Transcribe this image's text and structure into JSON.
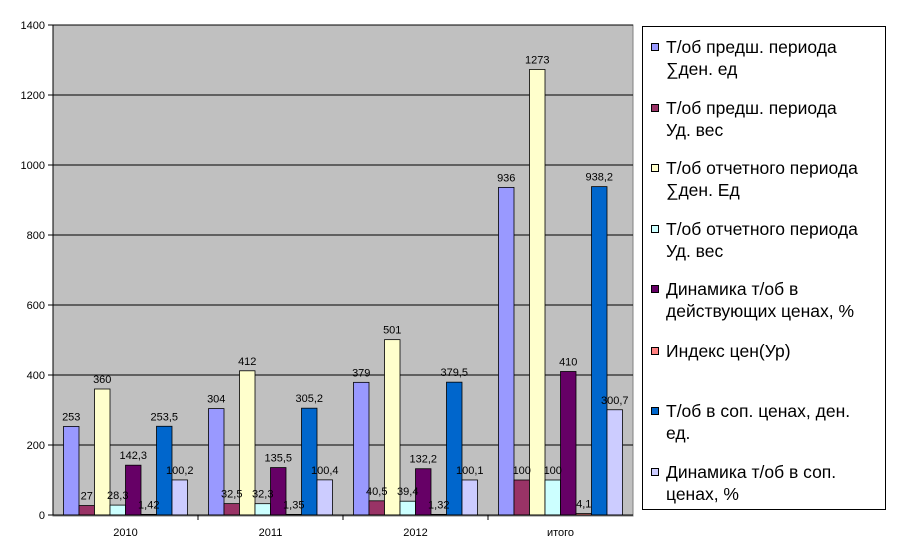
{
  "chart_data": {
    "type": "bar",
    "categories": [
      "2010",
      "2011",
      "2012",
      "итого"
    ],
    "ylim": [
      0,
      1400
    ],
    "yticks": [
      0,
      200,
      400,
      600,
      800,
      1000,
      1200,
      1400
    ],
    "grid": true,
    "legend_position": "right",
    "series": [
      {
        "name": "Т/об предш. периода ∑ден. ед",
        "color": "#9999ff",
        "values": [
          253,
          304,
          379,
          936
        ],
        "labels": [
          "253",
          "304",
          "379",
          "936"
        ]
      },
      {
        "name": "Т/об предш. периода Уд. вес",
        "color": "#993366",
        "values": [
          27,
          32.5,
          40.5,
          100
        ],
        "labels": [
          "27",
          "32,5",
          "40,5",
          "100"
        ]
      },
      {
        "name": "Т/об отчетного периода ∑ден. Ед",
        "color": "#ffffcc",
        "values": [
          360,
          412,
          501,
          1273
        ],
        "labels": [
          "360",
          "412",
          "501",
          "1273"
        ]
      },
      {
        "name": "Т/об отчетного периода Уд. вес",
        "color": "#ccffff",
        "values": [
          28.3,
          32.3,
          39.4,
          100
        ],
        "labels": [
          "28,3",
          "32,3",
          "39,4",
          "100"
        ]
      },
      {
        "name": "Динамика т/об в действующих ценах, %",
        "color": "#660066",
        "values": [
          142.3,
          135.5,
          132.2,
          410
        ],
        "labels": [
          "142,3",
          "135,5",
          "132,2",
          "410"
        ]
      },
      {
        "name": "Индекс цен(Ур)",
        "color": "#ff8080",
        "values": [
          1.42,
          1.35,
          1.32,
          4.1
        ],
        "labels": [
          "1,42",
          "1,35",
          "1,32",
          "4,1"
        ]
      },
      {
        "name": "Т/об в соп. ценах, ден. ед.",
        "color": "#0066cc",
        "values": [
          253.5,
          305.2,
          379.5,
          938.2
        ],
        "labels": [
          "253,5",
          "305,2",
          "379,5",
          "938,2"
        ]
      },
      {
        "name": "Динамика т/об в соп. ценах, %",
        "color": "#ccccff",
        "values": [
          100.2,
          100.4,
          100.1,
          300.7
        ],
        "labels": [
          "100,2",
          "100,4",
          "100,1",
          "300,7"
        ]
      }
    ]
  },
  "legend": {
    "items": [
      {
        "line1": "Т/об предш. периода",
        "line2": "∑ден. ед"
      },
      {
        "line1": "Т/об предш. периода",
        "line2": "Уд. вес"
      },
      {
        "line1": "Т/об отчетного периода",
        "line2": "∑ден. Ед"
      },
      {
        "line1": "Т/об отчетного периода",
        "line2": "Уд. вес"
      },
      {
        "line1": "Динамика т/об в",
        "line2": "действующих ценах, %"
      },
      {
        "line1": "Индекс цен(Ур)",
        "line2": ""
      },
      {
        "line1": "Т/об в соп. ценах, ден.",
        "line2": "ед."
      },
      {
        "line1": "Динамика т/об в соп.",
        "line2": "ценах, %"
      }
    ]
  }
}
